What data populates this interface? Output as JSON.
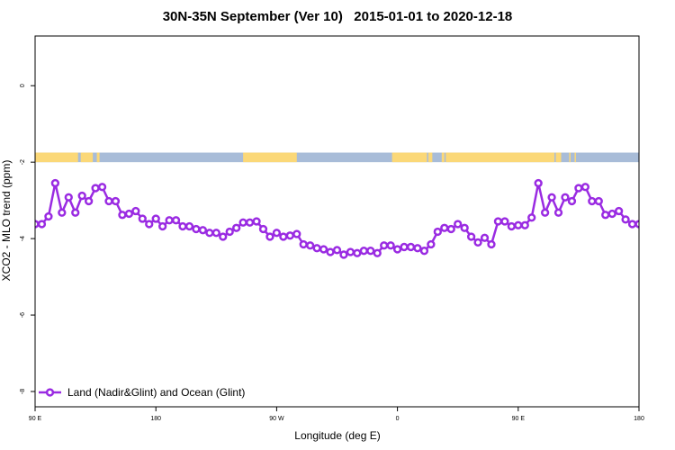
{
  "chart_data": {
    "type": "line",
    "title": "30N-35N September (Ver 10)   2015-01-01 to 2020-12-18",
    "xlabel": "Longitude (deg E)",
    "ylabel": "XCO2 - MLO trend (ppm)",
    "xlim": [
      90,
      540
    ],
    "ylim": [
      -8.4,
      1.3
    ],
    "xticks": [
      {
        "value": 90,
        "label": "90 E"
      },
      {
        "value": 180,
        "label": "180"
      },
      {
        "value": 270,
        "label": "90 W"
      },
      {
        "value": 360,
        "label": "0"
      },
      {
        "value": 450,
        "label": "90 E"
      },
      {
        "value": 540,
        "label": "180"
      }
    ],
    "yticks": [
      {
        "value": 0,
        "label": "0"
      },
      {
        "value": -2,
        "label": "-2"
      },
      {
        "value": -4,
        "label": "-4"
      },
      {
        "value": -6,
        "label": "-6"
      },
      {
        "value": -8,
        "label": "-8"
      }
    ],
    "land_ocean_band": {
      "y_top": -1.75,
      "y_bottom": -2.0,
      "ocean_color": "#a8bcd8",
      "land_color": "#fbd878",
      "land_segments": [
        [
          90,
          122
        ],
        [
          124,
          133
        ],
        [
          136,
          138
        ],
        [
          245,
          285
        ],
        [
          356,
          382
        ],
        [
          383,
          386
        ],
        [
          393,
          395
        ],
        [
          396,
          477
        ],
        [
          478,
          482
        ],
        [
          488,
          489
        ],
        [
          492,
          493
        ]
      ]
    },
    "series": [
      {
        "name": "Land (Nadir&Glint) and Ocean (Glint)",
        "color": "#9a2be2",
        "x": [
          90,
          95,
          100,
          105,
          110,
          115,
          120,
          125,
          130,
          135,
          140,
          145,
          150,
          155,
          160,
          165,
          170,
          175,
          180,
          185,
          190,
          195,
          200,
          205,
          210,
          215,
          220,
          225,
          230,
          235,
          240,
          245,
          250,
          255,
          260,
          265,
          270,
          275,
          280,
          285,
          290,
          295,
          300,
          305,
          310,
          315,
          320,
          325,
          330,
          335,
          340,
          345,
          350,
          355,
          360,
          365,
          370,
          375,
          380,
          385,
          390,
          395,
          400,
          405,
          410,
          415,
          420,
          425,
          430,
          435,
          440,
          445,
          450,
          455,
          460,
          465,
          470,
          475,
          480,
          485,
          490,
          495,
          500,
          505,
          510,
          515,
          520,
          525,
          530,
          535,
          540
        ],
        "values": [
          -3.62,
          -3.62,
          -3.42,
          -2.55,
          -3.32,
          -2.92,
          -3.32,
          -2.88,
          -3.02,
          -2.68,
          -2.65,
          -3.02,
          -3.02,
          -3.38,
          -3.35,
          -3.28,
          -3.48,
          -3.62,
          -3.48,
          -3.68,
          -3.52,
          -3.52,
          -3.68,
          -3.68,
          -3.75,
          -3.78,
          -3.85,
          -3.85,
          -3.95,
          -3.82,
          -3.72,
          -3.58,
          -3.58,
          -3.55,
          -3.75,
          -3.95,
          -3.85,
          -3.95,
          -3.92,
          -3.88,
          -4.15,
          -4.18,
          -4.25,
          -4.28,
          -4.35,
          -4.3,
          -4.42,
          -4.35,
          -4.38,
          -4.32,
          -4.32,
          -4.38,
          -4.18,
          -4.18,
          -4.28,
          -4.22,
          -4.22,
          -4.25,
          -4.32,
          -4.15,
          -3.82,
          -3.72,
          -3.75,
          -3.62,
          -3.72,
          -3.95,
          -4.1,
          -3.98,
          -4.15,
          -3.55,
          -3.55,
          -3.68,
          -3.65,
          -3.65,
          -3.45,
          -2.55,
          -3.32,
          -2.92,
          -3.32,
          -2.92,
          -3.02,
          -2.68,
          -2.65,
          -3.02,
          -3.02,
          -3.38,
          -3.35,
          -3.28,
          -3.5,
          -3.62,
          -3.62
        ]
      }
    ],
    "legend": {
      "position": "bottom-left",
      "entries": [
        "Land (Nadir&Glint) and Ocean (Glint)"
      ]
    }
  }
}
